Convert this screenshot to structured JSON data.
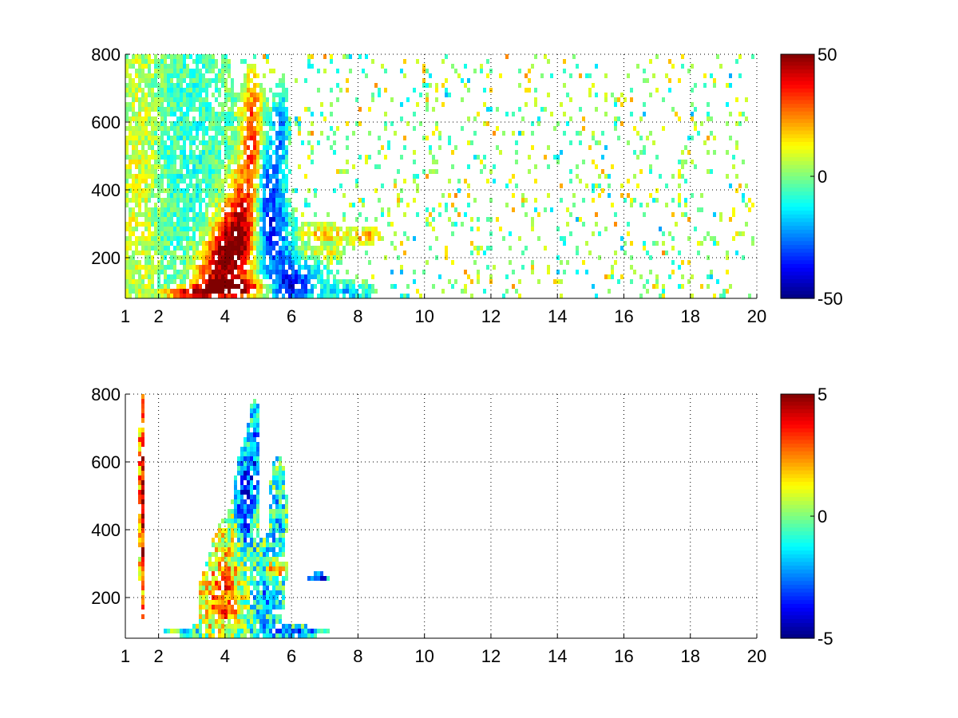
{
  "chart_data": [
    {
      "type": "heatmap",
      "title": "",
      "xlabel": "",
      "ylabel": "",
      "x_range": [
        1,
        20
      ],
      "y_range": [
        80,
        800
      ],
      "x_ticks": [
        "1",
        "2",
        "4",
        "6",
        "8",
        "10",
        "12",
        "14",
        "16",
        "18",
        "20"
      ],
      "x_tick_values": [
        1,
        2,
        4,
        6,
        8,
        10,
        12,
        14,
        16,
        18,
        20
      ],
      "y_ticks": [
        "200",
        "400",
        "600",
        "800"
      ],
      "y_tick_values": [
        200,
        400,
        600,
        800
      ],
      "grid": true,
      "colormap": "jet",
      "colorbar": {
        "min": -50,
        "max": 50,
        "ticks": [
          "50",
          "0",
          "-50"
        ],
        "tick_values": [
          50,
          0,
          -50
        ]
      },
      "blobs": [
        {
          "x": 4.2,
          "y": 110,
          "value": 45,
          "sx": 0.75,
          "sy": 18
        },
        {
          "x": 2.9,
          "y": 95,
          "value": 40,
          "sx": 0.5,
          "sy": 12
        },
        {
          "x": 4.5,
          "y": 290,
          "value": 40,
          "sx": 0.35,
          "sy": 110
        },
        {
          "x": 4.85,
          "y": 540,
          "value": 42,
          "sx": 0.22,
          "sy": 130
        },
        {
          "x": 4.0,
          "y": 220,
          "value": 32,
          "sx": 0.4,
          "sy": 80
        },
        {
          "x": 3.6,
          "y": 160,
          "value": 28,
          "sx": 0.45,
          "sy": 60
        },
        {
          "x": 5.2,
          "y": 430,
          "value": -30,
          "sx": 0.3,
          "sy": 120
        },
        {
          "x": 5.5,
          "y": 250,
          "value": -28,
          "sx": 0.4,
          "sy": 90
        },
        {
          "x": 5.7,
          "y": 580,
          "value": -22,
          "sx": 0.15,
          "sy": 90
        },
        {
          "x": 6.3,
          "y": 140,
          "value": -20,
          "sx": 0.5,
          "sy": 50
        },
        {
          "x": 5.9,
          "y": 110,
          "value": -24,
          "sx": 0.4,
          "sy": 30
        },
        {
          "x": 7.8,
          "y": 100,
          "value": -18,
          "sx": 0.5,
          "sy": 20
        },
        {
          "x": 7.0,
          "y": 270,
          "value": 18,
          "sx": 0.7,
          "sy": 18
        },
        {
          "x": 8.3,
          "y": 265,
          "value": 22,
          "sx": 0.3,
          "sy": 14
        },
        {
          "x": 6.8,
          "y": 215,
          "value": 15,
          "sx": 0.5,
          "sy": 15
        },
        {
          "x": 1.4,
          "y": 440,
          "value": 10,
          "sx": 0.4,
          "sy": 400
        },
        {
          "x": 3.0,
          "y": 450,
          "value": -8,
          "sx": 0.8,
          "sy": 400
        }
      ]
    },
    {
      "type": "heatmap",
      "title": "",
      "xlabel": "",
      "ylabel": "",
      "x_range": [
        1,
        20
      ],
      "y_range": [
        80,
        800
      ],
      "x_ticks": [
        "1",
        "2",
        "4",
        "6",
        "8",
        "10",
        "12",
        "14",
        "16",
        "18",
        "20"
      ],
      "x_tick_values": [
        1,
        2,
        4,
        6,
        8,
        10,
        12,
        14,
        16,
        18,
        20
      ],
      "y_ticks": [
        "200",
        "400",
        "600",
        "800"
      ],
      "y_tick_values": [
        200,
        400,
        600,
        800
      ],
      "grid": true,
      "colormap": "jet",
      "colorbar": {
        "min": -5,
        "max": 5,
        "ticks": [
          "5",
          "0",
          "-5"
        ],
        "tick_values": [
          5,
          0,
          -5
        ]
      },
      "blobs": [
        {
          "x": 4.6,
          "y": 480,
          "value": -3.5,
          "sx": 0.2,
          "sy": 120
        },
        {
          "x": 4.9,
          "y": 650,
          "value": -2.5,
          "sx": 0.12,
          "sy": 100
        },
        {
          "x": 4.2,
          "y": 270,
          "value": 1.5,
          "sx": 0.45,
          "sy": 120
        },
        {
          "x": 3.8,
          "y": 180,
          "value": 2.0,
          "sx": 0.4,
          "sy": 70
        },
        {
          "x": 5.2,
          "y": 220,
          "value": -2.0,
          "sx": 0.4,
          "sy": 90
        },
        {
          "x": 5.6,
          "y": 460,
          "value": -1.5,
          "sx": 0.18,
          "sy": 110
        },
        {
          "x": 5.5,
          "y": 280,
          "value": 4.0,
          "sx": 0.18,
          "sy": 18
        },
        {
          "x": 6.8,
          "y": 260,
          "value": -4.0,
          "sx": 0.25,
          "sy": 8
        },
        {
          "x": 3.0,
          "y": 100,
          "value": -1.0,
          "sx": 0.6,
          "sy": 10
        },
        {
          "x": 6.0,
          "y": 100,
          "value": -2.5,
          "sx": 0.8,
          "sy": 12
        },
        {
          "x": 1.5,
          "y": 480,
          "value": 4.5,
          "sx": 0.06,
          "sy": 250
        }
      ]
    }
  ]
}
